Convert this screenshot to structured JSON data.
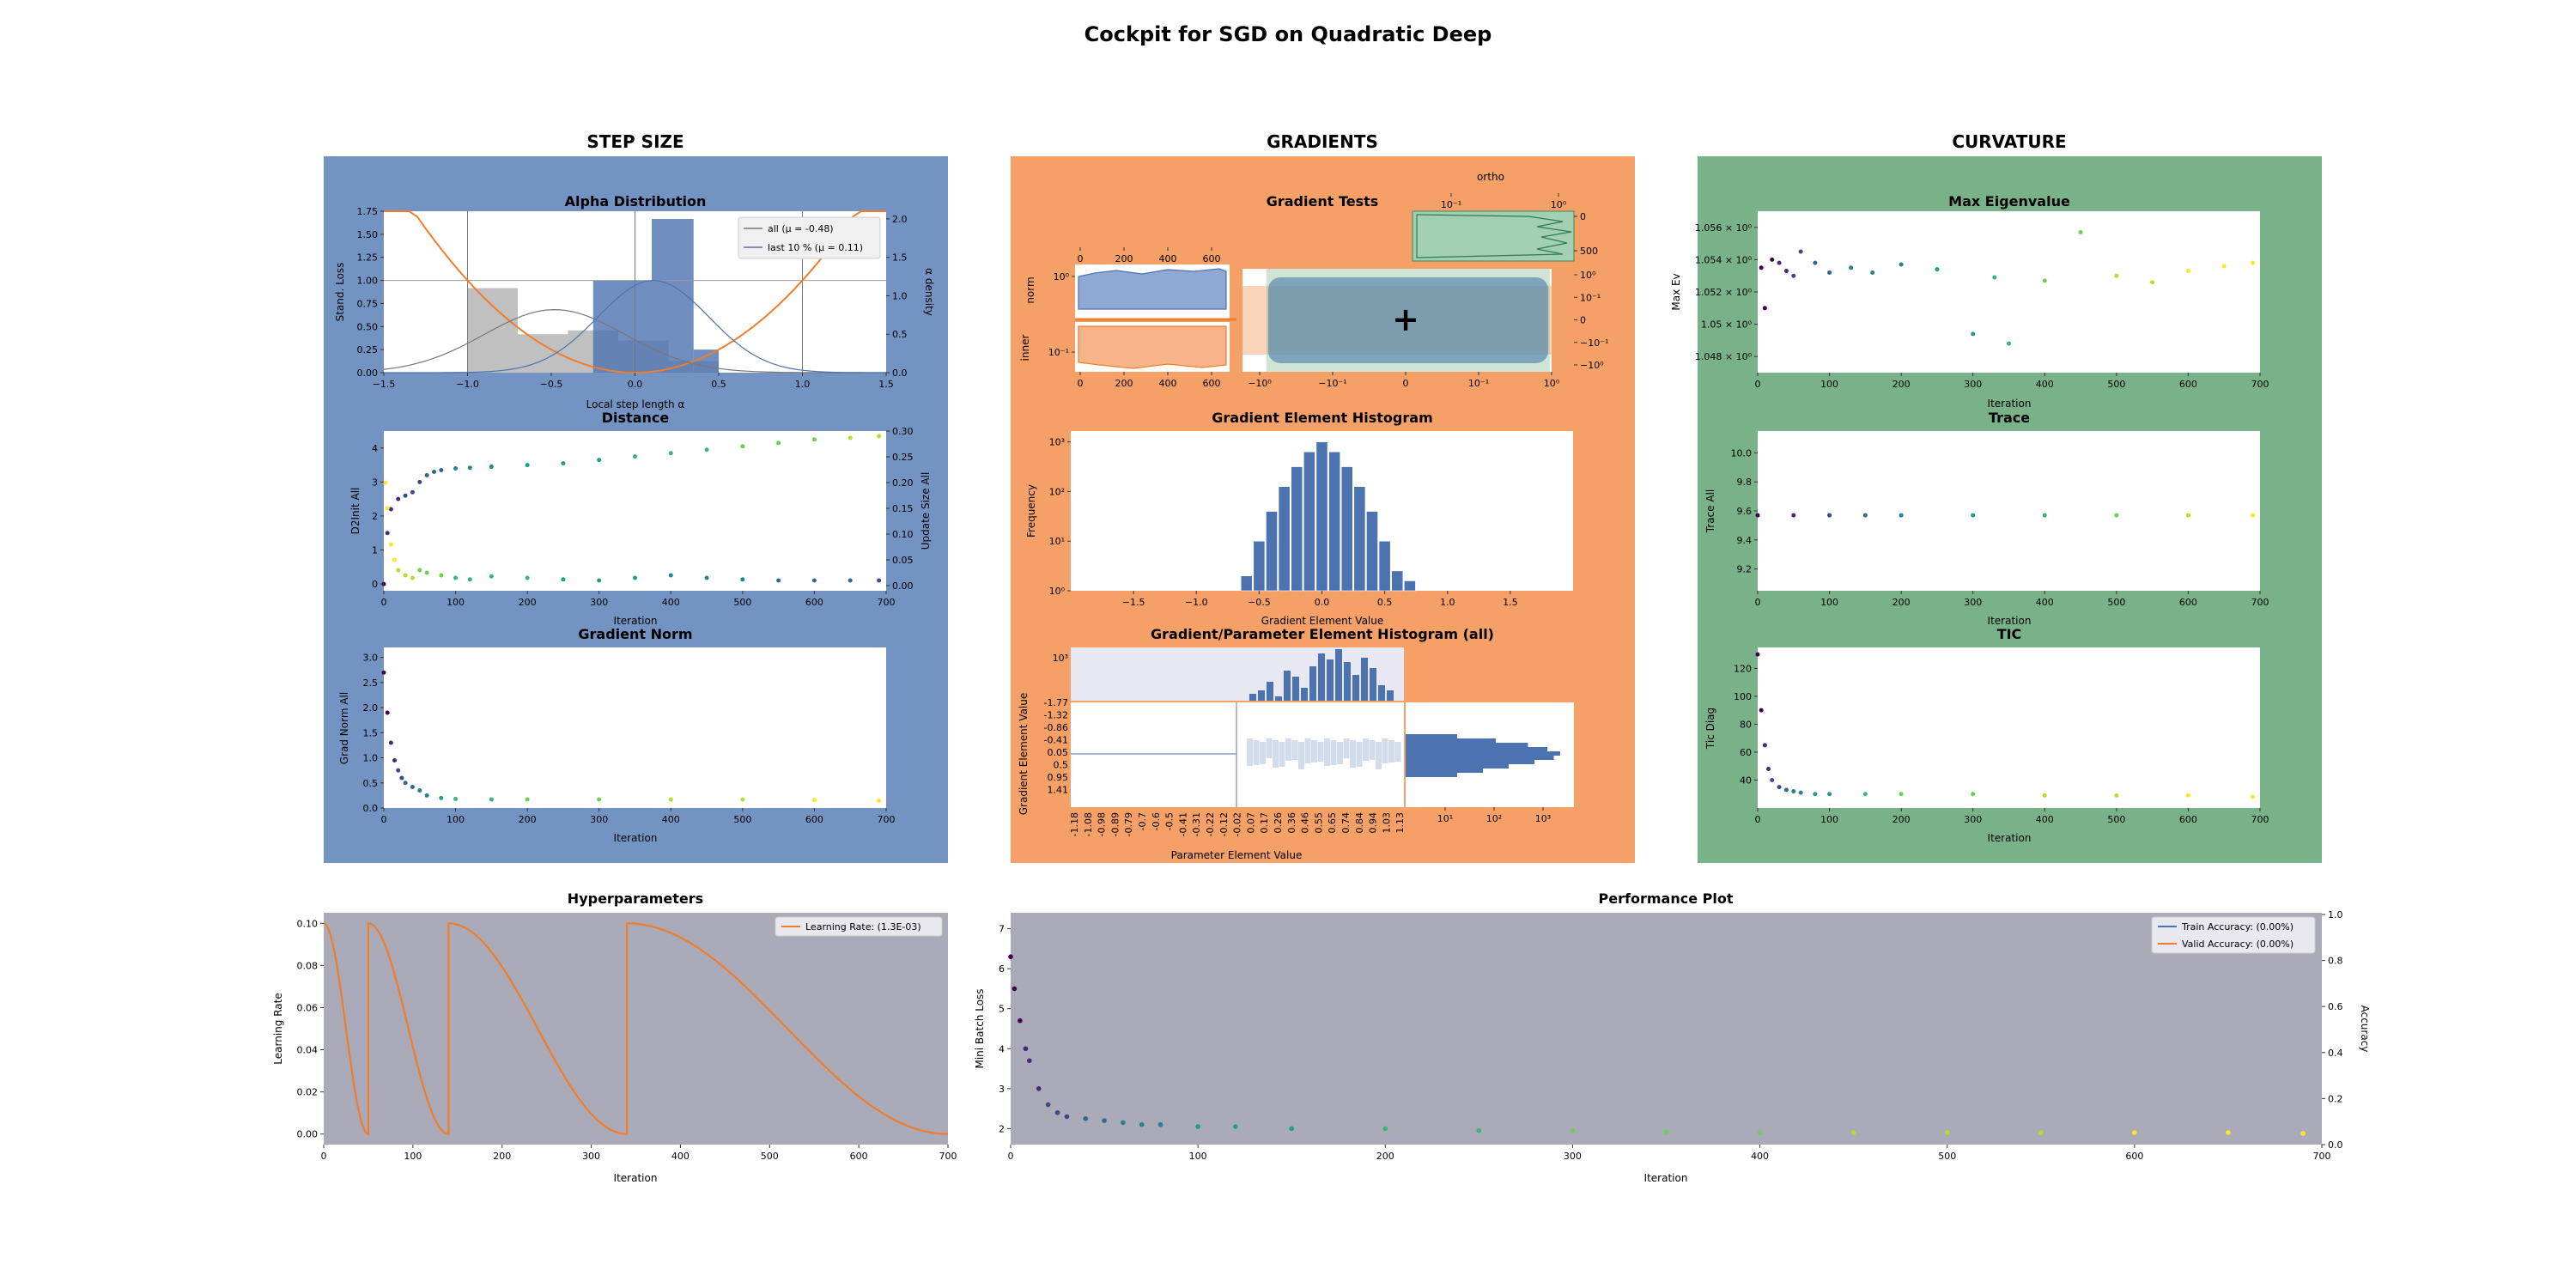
{
  "page_title": "Cockpit for SGD on Quadratic Deep",
  "colors": {
    "step_size_bg": "#7393c2",
    "gradients_bg": "#f4a067",
    "curvature_bg": "#79b188",
    "hyper_bg": "#aaaab8",
    "orange": "#f07d2a",
    "blue": "#4c72b0",
    "grey": "#bdbdbd",
    "green": "#3a8a5a"
  },
  "sections": {
    "step_size": "STEP SIZE",
    "gradients": "GRADIENTS",
    "curvature": "CURVATURE"
  },
  "alpha": {
    "title": "Alpha Distribution",
    "xlabel": "Local step length α",
    "ylabel": "Stand. Loss",
    "ylabel2": "α density",
    "legend_all": "all (μ = -0.48)",
    "legend_last": "last 10 % (μ = 0.11)",
    "xticks": [
      "−1.5",
      "−1.0",
      "−0.5",
      "0.0",
      "0.5",
      "1.0",
      "1.5"
    ],
    "yticks": [
      "0.00",
      "0.25",
      "0.50",
      "0.75",
      "1.00",
      "1.25",
      "1.50",
      "1.75"
    ],
    "y2ticks": [
      "0.0",
      "0.5",
      "1.0",
      "1.5",
      "2.0"
    ]
  },
  "distance": {
    "title": "Distance",
    "xlabel": "Iteration",
    "ylabel": "D2Init All",
    "ylabel2": "Update Size All",
    "xticks": [
      "0",
      "100",
      "200",
      "300",
      "400",
      "500",
      "600",
      "700"
    ],
    "yticks": [
      "0",
      "1",
      "2",
      "3",
      "4"
    ],
    "y2ticks": [
      "0.00",
      "0.05",
      "0.10",
      "0.15",
      "0.20",
      "0.25",
      "0.30"
    ]
  },
  "gradnorm": {
    "title": "Gradient Norm",
    "xlabel": "Iteration",
    "ylabel": "Grad Norm All",
    "xticks": [
      "0",
      "100",
      "200",
      "300",
      "400",
      "500",
      "600",
      "700"
    ],
    "yticks": [
      "0.0",
      "0.5",
      "1.0",
      "1.5",
      "2.0",
      "2.5",
      "3.0"
    ]
  },
  "gradtests": {
    "title": "Gradient Tests",
    "ortho_label": "ortho",
    "norm_label": "norm",
    "inner_label": "inner",
    "top_xticks": [
      "0",
      "200",
      "400",
      "600"
    ],
    "bottom_xticks": [
      "0",
      "200",
      "400",
      "600"
    ],
    "left_yticks": [
      "10⁰",
      "10⁻¹"
    ],
    "ortho_xticks": [
      "10⁻¹",
      "10⁰"
    ],
    "ortho_yticks": [
      "0",
      "500"
    ],
    "right_yticks": [
      "10⁰",
      "10⁻¹",
      "0",
      "−10⁻¹",
      "−10⁰"
    ],
    "center_xticks": [
      "−10⁰",
      "−10⁻¹",
      "0",
      "10⁻¹",
      "10⁰"
    ]
  },
  "histogram": {
    "title": "Gradient Element Histogram",
    "xlabel": "Gradient Element Value",
    "ylabel": "Frequency",
    "xticks": [
      "−1.5",
      "−1.0",
      "−0.5",
      "0.0",
      "0.5",
      "1.0",
      "1.5"
    ],
    "yticks": [
      "10⁰",
      "10¹",
      "10²",
      "10³"
    ]
  },
  "histogram2d": {
    "title": "Gradient/Parameter Element Histogram (all)",
    "xlabel": "Parameter Element Value",
    "ylabel": "Gradient Element Value",
    "xticks": [
      "-1.18",
      "-1.08",
      "-0.98",
      "-0.89",
      "-0.79",
      "-0.7",
      "-0.6",
      "-0.5",
      "-0.41",
      "-0.31",
      "-0.22",
      "-0.12",
      "-0.02",
      "0.07",
      "0.17",
      "0.26",
      "0.36",
      "0.46",
      "0.55",
      "0.65",
      "0.74",
      "0.84",
      "0.94",
      "1.03",
      "1.13"
    ],
    "yticks": [
      "-1.77",
      "-1.32",
      "-0.86",
      "-0.41",
      "0.05",
      "0.5",
      "0.95",
      "1.41"
    ],
    "top_ytick": "10³",
    "right_xticks": [
      "10¹",
      "10²",
      "10³"
    ]
  },
  "maxev": {
    "title": "Max Eigenvalue",
    "xlabel": "Iteration",
    "ylabel": "Max Ev",
    "xticks": [
      "0",
      "100",
      "200",
      "300",
      "400",
      "500",
      "600",
      "700"
    ],
    "yticks": [
      "1.048 × 10⁰",
      "1.05 × 10⁰",
      "1.052 × 10⁰",
      "1.054 × 10⁰",
      "1.056 × 10⁰"
    ]
  },
  "trace": {
    "title": "Trace",
    "xlabel": "Iteration",
    "ylabel": "Trace All",
    "xticks": [
      "0",
      "100",
      "200",
      "300",
      "400",
      "500",
      "600",
      "700"
    ],
    "yticks": [
      "9.2",
      "9.4",
      "9.6",
      "9.8",
      "10.0"
    ]
  },
  "tic": {
    "title": "TIC",
    "xlabel": "Iteration",
    "ylabel": "Tic Diag",
    "xticks": [
      "0",
      "100",
      "200",
      "300",
      "400",
      "500",
      "600",
      "700"
    ],
    "yticks": [
      "40",
      "60",
      "80",
      "100",
      "120"
    ]
  },
  "hyper": {
    "title": "Hyperparameters",
    "xlabel": "Iteration",
    "ylabel": "Learning Rate",
    "legend": "Learning Rate: (1.3E-03)",
    "xticks": [
      "0",
      "100",
      "200",
      "300",
      "400",
      "500",
      "600",
      "700"
    ],
    "yticks": [
      "0.00",
      "0.02",
      "0.04",
      "0.06",
      "0.08",
      "0.10"
    ]
  },
  "perf": {
    "title": "Performance Plot",
    "xlabel": "Iteration",
    "ylabel": "Mini Batch Loss",
    "ylabel2": "Accuracy",
    "legend_train": "Train Accuracy: (0.00%)",
    "legend_valid": "Valid Accuracy: (0.00%)",
    "xticks": [
      "0",
      "100",
      "200",
      "300",
      "400",
      "500",
      "600",
      "700"
    ],
    "yticks": [
      "2",
      "3",
      "4",
      "5",
      "6",
      "7"
    ],
    "y2ticks": [
      "0.0",
      "0.2",
      "0.4",
      "0.6",
      "0.8",
      "1.0"
    ]
  },
  "chart_data": [
    {
      "type": "bar",
      "id": "alpha_all_hist",
      "bins_start": -1.0,
      "bin_width": 0.3,
      "values": [
        1.1,
        0.5,
        0.55,
        0.42,
        0.15
      ],
      "y_axis": "alpha density",
      "xlim": [
        -1.5,
        1.5
      ],
      "ylim_left": [
        0,
        1.75
      ],
      "ylim_right": [
        0,
        2.1
      ]
    },
    {
      "type": "bar",
      "id": "alpha_last_hist",
      "edges": [
        -0.25,
        0.1,
        0.35,
        0.5
      ],
      "values": [
        1.2,
        2.0,
        0.3
      ],
      "y_axis": "alpha density"
    },
    {
      "type": "line",
      "id": "alpha_parabola",
      "fn": "quadratic",
      "points": [
        [
          -1.5,
          2.4
        ],
        [
          -1.0,
          1.0
        ],
        [
          -0.5,
          0.3
        ],
        [
          0.0,
          0.0
        ],
        [
          0.5,
          0.3
        ],
        [
          1.0,
          1.0
        ],
        [
          1.5,
          2.4
        ]
      ]
    },
    {
      "type": "line",
      "id": "alpha_density_all",
      "mean": -0.48,
      "std": 0.42,
      "peak": 0.82
    },
    {
      "type": "line",
      "id": "alpha_density_last",
      "mean": 0.11,
      "std": 0.33,
      "peak": 1.2
    },
    {
      "type": "scatter",
      "id": "distance_d2init",
      "x": [
        0,
        5,
        10,
        20,
        30,
        40,
        50,
        60,
        70,
        80,
        100,
        120,
        150,
        200,
        250,
        300,
        350,
        400,
        450,
        500,
        550,
        600,
        650,
        690
      ],
      "y": [
        0,
        1.5,
        2.2,
        2.5,
        2.6,
        2.7,
        3.0,
        3.2,
        3.3,
        3.35,
        3.4,
        3.42,
        3.45,
        3.5,
        3.55,
        3.65,
        3.75,
        3.85,
        3.95,
        4.05,
        4.15,
        4.25,
        4.3,
        4.35
      ],
      "xlim": [
        0,
        700
      ],
      "ylim": [
        -0.2,
        4.5
      ]
    },
    {
      "type": "scatter",
      "id": "distance_update",
      "x": [
        2,
        5,
        10,
        15,
        20,
        30,
        40,
        50,
        60,
        80,
        100,
        120,
        150,
        200,
        250,
        300,
        350,
        400,
        450,
        500,
        550,
        600,
        650,
        690
      ],
      "y": [
        0.2,
        0.15,
        0.08,
        0.05,
        0.03,
        0.02,
        0.015,
        0.03,
        0.025,
        0.02,
        0.015,
        0.012,
        0.018,
        0.015,
        0.012,
        0.01,
        0.015,
        0.02,
        0.015,
        0.012,
        0.01,
        0.01,
        0.01,
        0.01
      ],
      "ylim": [
        -0.01,
        0.3
      ]
    },
    {
      "type": "scatter",
      "id": "grad_norm",
      "x": [
        0,
        5,
        10,
        15,
        20,
        25,
        30,
        40,
        50,
        60,
        80,
        100,
        150,
        200,
        300,
        400,
        500,
        600,
        690
      ],
      "y": [
        2.7,
        1.9,
        1.3,
        0.95,
        0.75,
        0.6,
        0.5,
        0.42,
        0.35,
        0.25,
        0.2,
        0.18,
        0.17,
        0.17,
        0.17,
        0.17,
        0.17,
        0.16,
        0.15
      ],
      "xlim": [
        0,
        700
      ],
      "ylim": [
        0,
        3.2
      ]
    },
    {
      "type": "bar",
      "id": "gradient_histogram",
      "x_centers": [
        -0.6,
        -0.5,
        -0.4,
        -0.3,
        -0.2,
        -0.1,
        0.0,
        0.1,
        0.2,
        0.3,
        0.4,
        0.5,
        0.6,
        0.7
      ],
      "log10_values": [
        0.3,
        1.0,
        1.6,
        2.1,
        2.5,
        2.8,
        3.0,
        2.8,
        2.5,
        2.1,
        1.6,
        1.0,
        0.4,
        0.2
      ],
      "xlim": [
        -2.0,
        2.0
      ],
      "ylim": [
        "10^0",
        "10^3"
      ],
      "y_scale": "log"
    },
    {
      "type": "scatter",
      "id": "max_eigenvalue",
      "x": [
        5,
        10,
        20,
        30,
        40,
        50,
        60,
        80,
        100,
        130,
        160,
        200,
        250,
        300,
        330,
        350,
        400,
        450,
        500,
        550,
        600,
        650,
        690
      ],
      "y": [
        1.0535,
        1.051,
        1.054,
        1.0538,
        1.0533,
        1.053,
        1.0545,
        1.0538,
        1.0532,
        1.0535,
        1.0532,
        1.0537,
        1.0534,
        1.0494,
        1.0529,
        1.0488,
        1.0527,
        1.0557,
        1.053,
        1.0526,
        1.0533,
        1.0536,
        1.0538
      ],
      "xlim": [
        0,
        700
      ],
      "ylim": [
        1.047,
        1.057
      ]
    },
    {
      "type": "scatter",
      "id": "trace",
      "x": [
        0,
        50,
        100,
        150,
        200,
        300,
        400,
        500,
        600,
        690
      ],
      "y": [
        9.57,
        9.57,
        9.57,
        9.57,
        9.57,
        9.57,
        9.57,
        9.57,
        9.57,
        9.57
      ],
      "xlim": [
        0,
        700
      ],
      "ylim": [
        9.05,
        10.15
      ]
    },
    {
      "type": "scatter",
      "id": "tic",
      "x": [
        0,
        5,
        10,
        15,
        20,
        30,
        40,
        50,
        60,
        80,
        100,
        150,
        200,
        300,
        400,
        500,
        600,
        690
      ],
      "y": [
        130,
        90,
        65,
        48,
        40,
        35,
        33,
        32,
        31,
        30,
        30,
        30,
        30,
        30,
        29,
        29,
        29,
        28
      ],
      "xlim": [
        0,
        700
      ],
      "ylim": [
        20,
        135
      ]
    },
    {
      "type": "line",
      "id": "learning_rate",
      "restarts": [
        0,
        50,
        140,
        340
      ],
      "ends": [
        50,
        140,
        340,
        700
      ],
      "peak": 0.1,
      "xlim": [
        0,
        700
      ],
      "ylim": [
        -0.005,
        0.105
      ]
    },
    {
      "type": "scatter",
      "id": "mini_batch_loss",
      "x": [
        0,
        2,
        5,
        8,
        10,
        15,
        20,
        25,
        30,
        40,
        50,
        60,
        70,
        80,
        100,
        120,
        150,
        200,
        250,
        300,
        350,
        400,
        450,
        500,
        550,
        600,
        650,
        690
      ],
      "y": [
        6.3,
        5.5,
        4.7,
        4.0,
        3.7,
        3.0,
        2.6,
        2.4,
        2.3,
        2.25,
        2.2,
        2.15,
        2.1,
        2.1,
        2.05,
        2.05,
        2.0,
        2.0,
        1.95,
        1.95,
        1.92,
        1.9,
        1.9,
        1.9,
        1.9,
        1.9,
        1.9,
        1.88
      ],
      "xlim": [
        0,
        700
      ],
      "ylim": [
        1.6,
        7.4
      ]
    }
  ]
}
